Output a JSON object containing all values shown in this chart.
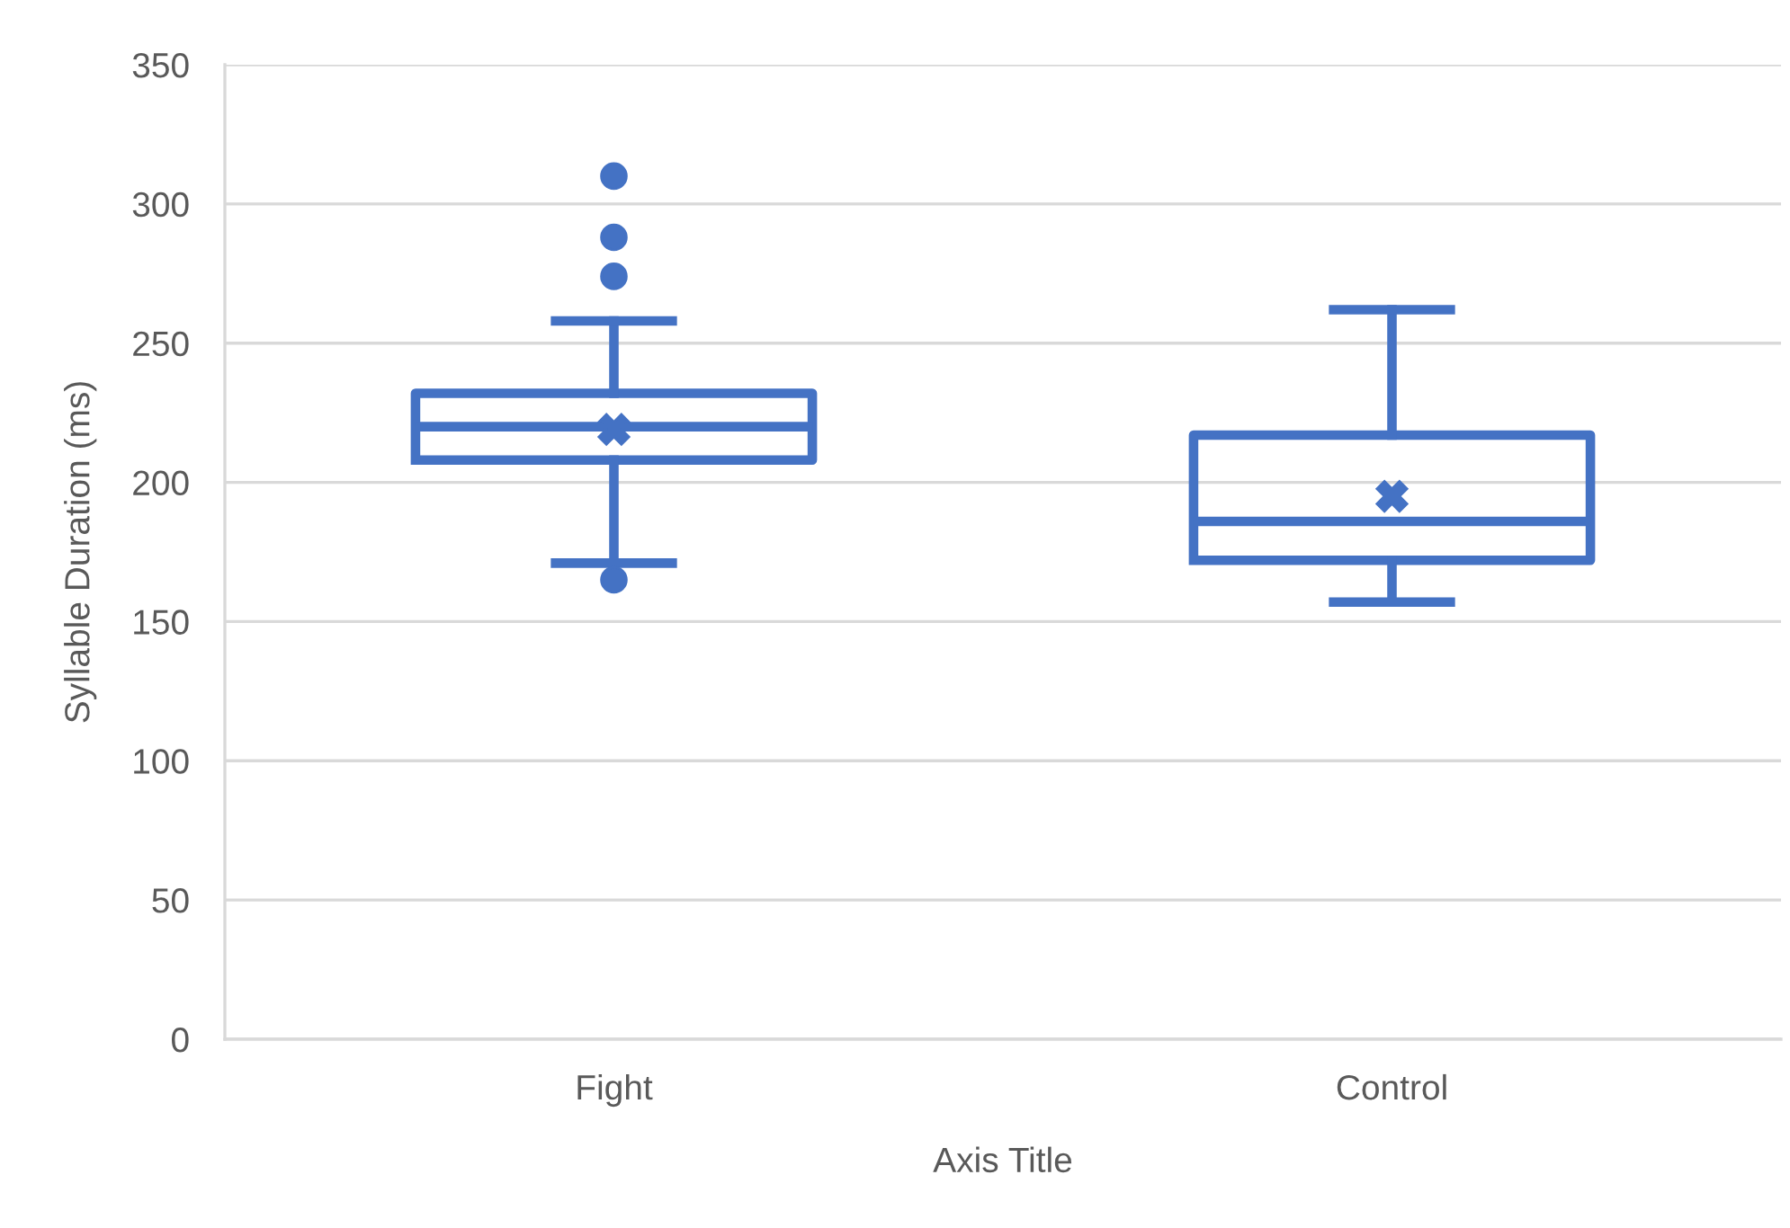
{
  "chart_data": {
    "type": "box",
    "xlabel": "Axis Title",
    "ylabel": "Syllable Duration (ms)",
    "categories": [
      "Fight",
      "Control"
    ],
    "series": [
      {
        "color": "#4472c4",
        "boxes": [
          {
            "low": 171,
            "q1": 208,
            "median": 220,
            "q3": 232,
            "high": 258,
            "mean": 219,
            "outliers": [
              310,
              288,
              274,
              165
            ]
          },
          {
            "low": 157,
            "q1": 172,
            "median": 186,
            "q3": 217,
            "high": 262,
            "mean": 195
          }
        ]
      }
    ],
    "ylim": [
      0,
      350
    ],
    "yticks": [
      0,
      50,
      100,
      150,
      200,
      250,
      300,
      350
    ],
    "grid": "y"
  }
}
